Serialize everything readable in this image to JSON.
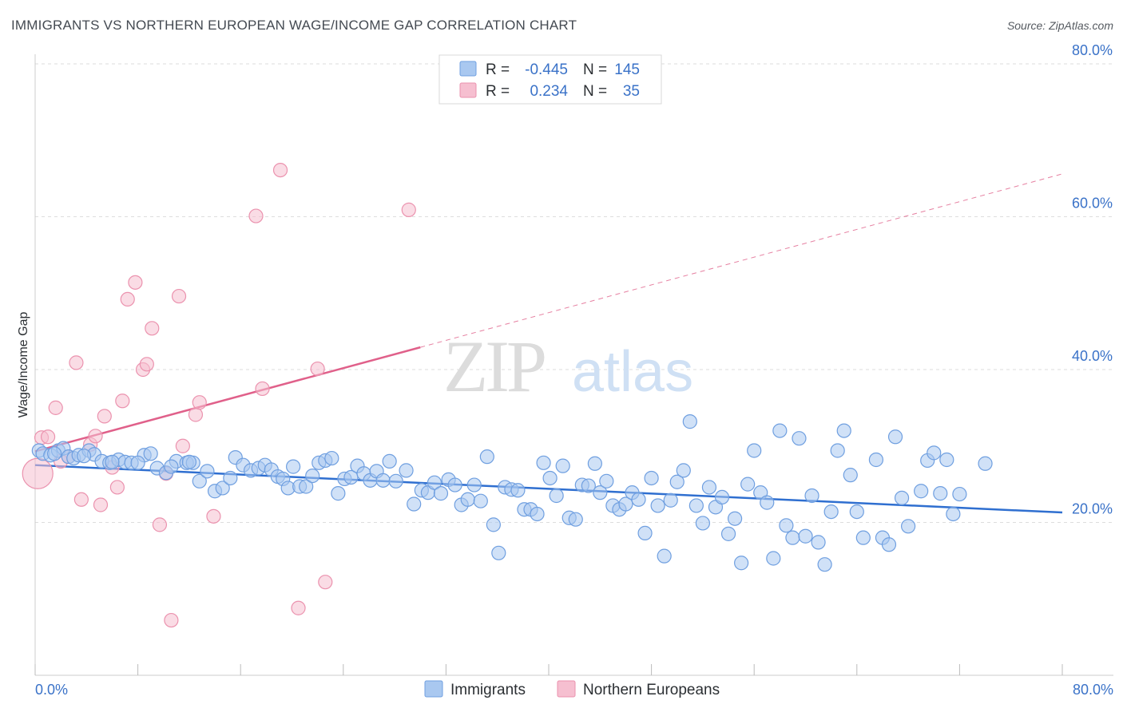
{
  "header": {
    "title": "IMMIGRANTS VS NORTHERN EUROPEAN WAGE/INCOME GAP CORRELATION CHART",
    "source": "Source: ZipAtlas.com"
  },
  "watermark": {
    "zip": "ZIP",
    "atlas": "atlas"
  },
  "legend_box": {
    "rows": [
      {
        "r_label": "R =",
        "r_value": "-0.445",
        "n_label": "N =",
        "n_value": "145"
      },
      {
        "r_label": "R =",
        "r_value": "0.234",
        "n_label": "N =",
        "n_value": "35"
      }
    ]
  },
  "bottom_legend": [
    "Immigrants",
    "Northern Europeans"
  ],
  "colors": {
    "blue_fill": "#a9c8f0",
    "blue_stroke": "#6f9fe0",
    "blue_line": "#2f6fd0",
    "pink_fill": "#f6bfd0",
    "pink_stroke": "#eb92ae",
    "pink_line": "#e0608a",
    "tick_blue": "#3a72c8",
    "grid": "#dddddd"
  },
  "chart_data": {
    "type": "scatter",
    "title": "IMMIGRANTS VS NORTHERN EUROPEAN WAGE/INCOME GAP CORRELATION CHART",
    "xlabel": "",
    "ylabel": "Wage/Income Gap",
    "xlim": [
      0,
      80
    ],
    "ylim": [
      0,
      80
    ],
    "x_tick_labels": [
      "0.0%",
      "80.0%"
    ],
    "y_tick_labels": [
      "20.0%",
      "40.0%",
      "60.0%",
      "80.0%"
    ],
    "y_ticks": [
      20,
      40,
      60,
      80
    ],
    "grid": true,
    "legend_position": "top-center",
    "series": [
      {
        "name": "Immigrants",
        "r": -0.445,
        "n": 145,
        "trend": {
          "x": [
            0,
            80
          ],
          "y": [
            27.5,
            21.3
          ],
          "dashed_from": null
        },
        "points": [
          [
            0.3,
            29.4
          ],
          [
            0.6,
            29.0
          ],
          [
            1.2,
            28.8
          ],
          [
            1.8,
            29.4
          ],
          [
            2.2,
            29.7
          ],
          [
            2.6,
            28.6
          ],
          [
            3.0,
            28.4
          ],
          [
            3.4,
            28.8
          ],
          [
            4.2,
            29.4
          ],
          [
            4.6,
            28.9
          ],
          [
            5.2,
            28.0
          ],
          [
            5.8,
            27.8
          ],
          [
            6.5,
            28.2
          ],
          [
            7.0,
            27.9
          ],
          [
            7.5,
            27.8
          ],
          [
            8.5,
            28.8
          ],
          [
            9.0,
            29.0
          ],
          [
            9.5,
            27.1
          ],
          [
            10.2,
            26.5
          ],
          [
            11.0,
            28.0
          ],
          [
            11.8,
            27.8
          ],
          [
            12.3,
            27.8
          ],
          [
            12.8,
            25.4
          ],
          [
            13.4,
            26.7
          ],
          [
            14.0,
            24.1
          ],
          [
            14.6,
            24.5
          ],
          [
            15.2,
            25.8
          ],
          [
            15.6,
            28.5
          ],
          [
            16.2,
            27.5
          ],
          [
            16.8,
            26.8
          ],
          [
            17.4,
            27.1
          ],
          [
            17.9,
            27.5
          ],
          [
            18.4,
            26.9
          ],
          [
            18.9,
            26.0
          ],
          [
            19.3,
            25.7
          ],
          [
            19.7,
            24.5
          ],
          [
            20.1,
            27.3
          ],
          [
            20.6,
            24.7
          ],
          [
            21.1,
            24.7
          ],
          [
            21.6,
            26.1
          ],
          [
            22.1,
            27.8
          ],
          [
            22.6,
            28.1
          ],
          [
            23.1,
            28.4
          ],
          [
            23.6,
            23.8
          ],
          [
            24.1,
            25.7
          ],
          [
            24.6,
            25.9
          ],
          [
            25.1,
            27.4
          ],
          [
            25.6,
            26.4
          ],
          [
            26.1,
            25.5
          ],
          [
            26.6,
            26.7
          ],
          [
            27.1,
            25.5
          ],
          [
            27.6,
            28.0
          ],
          [
            28.1,
            25.4
          ],
          [
            28.9,
            26.8
          ],
          [
            29.5,
            22.4
          ],
          [
            30.1,
            24.2
          ],
          [
            30.6,
            23.9
          ],
          [
            31.1,
            25.2
          ],
          [
            31.6,
            23.8
          ],
          [
            32.2,
            25.6
          ],
          [
            32.7,
            24.9
          ],
          [
            33.2,
            22.3
          ],
          [
            33.7,
            23.0
          ],
          [
            34.2,
            24.9
          ],
          [
            34.7,
            22.8
          ],
          [
            35.2,
            28.6
          ],
          [
            35.7,
            19.7
          ],
          [
            36.1,
            16.0
          ],
          [
            36.6,
            24.6
          ],
          [
            37.1,
            24.3
          ],
          [
            37.6,
            24.2
          ],
          [
            38.1,
            21.7
          ],
          [
            38.6,
            21.7
          ],
          [
            39.1,
            21.1
          ],
          [
            39.6,
            27.8
          ],
          [
            40.1,
            25.8
          ],
          [
            40.6,
            23.5
          ],
          [
            41.1,
            27.4
          ],
          [
            41.6,
            20.6
          ],
          [
            42.1,
            20.4
          ],
          [
            42.6,
            24.9
          ],
          [
            43.1,
            24.8
          ],
          [
            43.6,
            27.7
          ],
          [
            44.0,
            23.9
          ],
          [
            44.5,
            25.4
          ],
          [
            45.0,
            22.2
          ],
          [
            45.5,
            21.7
          ],
          [
            46.0,
            22.4
          ],
          [
            46.5,
            23.9
          ],
          [
            47.0,
            23.0
          ],
          [
            47.5,
            18.6
          ],
          [
            48.0,
            25.8
          ],
          [
            48.5,
            22.2
          ],
          [
            49.0,
            15.6
          ],
          [
            49.5,
            22.9
          ],
          [
            50.0,
            25.3
          ],
          [
            50.5,
            26.8
          ],
          [
            51.0,
            33.2
          ],
          [
            51.5,
            22.2
          ],
          [
            52.0,
            19.9
          ],
          [
            52.5,
            24.6
          ],
          [
            53.0,
            22.0
          ],
          [
            53.5,
            23.3
          ],
          [
            54.0,
            18.5
          ],
          [
            54.5,
            20.5
          ],
          [
            55.0,
            14.7
          ],
          [
            55.5,
            25.0
          ],
          [
            56.0,
            29.4
          ],
          [
            56.5,
            23.9
          ],
          [
            57.0,
            22.6
          ],
          [
            57.5,
            15.3
          ],
          [
            58.0,
            32.0
          ],
          [
            58.5,
            19.6
          ],
          [
            59.0,
            18.0
          ],
          [
            59.5,
            31.0
          ],
          [
            60.0,
            18.2
          ],
          [
            60.5,
            23.5
          ],
          [
            61.0,
            17.4
          ],
          [
            61.5,
            14.5
          ],
          [
            62.0,
            21.4
          ],
          [
            62.5,
            29.4
          ],
          [
            63.0,
            32.0
          ],
          [
            63.5,
            26.2
          ],
          [
            64.0,
            21.4
          ],
          [
            64.5,
            18.0
          ],
          [
            65.5,
            28.2
          ],
          [
            66.0,
            18.0
          ],
          [
            66.5,
            17.1
          ],
          [
            67.0,
            31.2
          ],
          [
            67.5,
            23.2
          ],
          [
            68.0,
            19.5
          ],
          [
            69.0,
            24.1
          ],
          [
            69.5,
            28.1
          ],
          [
            70.0,
            29.1
          ],
          [
            70.5,
            23.8
          ],
          [
            71.0,
            28.2
          ],
          [
            71.5,
            21.1
          ],
          [
            72.0,
            23.7
          ],
          [
            74.0,
            27.7
          ],
          [
            1.5,
            29.0
          ],
          [
            3.8,
            28.7
          ],
          [
            6.0,
            27.9
          ],
          [
            8.0,
            27.8
          ],
          [
            10.6,
            27.3
          ],
          [
            12.0,
            27.9
          ]
        ]
      },
      {
        "name": "Northern Europeans",
        "r": 0.234,
        "n": 35,
        "trend": {
          "x": [
            0,
            80
          ],
          "y": [
            29.3,
            65.6
          ],
          "dashed_from": 30
        },
        "points": [
          [
            0.2,
            26.4
          ],
          [
            0.5,
            31.1
          ],
          [
            1.0,
            31.2
          ],
          [
            1.6,
            35.0
          ],
          [
            2.0,
            28.0
          ],
          [
            2.6,
            28.6
          ],
          [
            3.2,
            40.9
          ],
          [
            3.6,
            23.0
          ],
          [
            4.3,
            30.2
          ],
          [
            4.7,
            31.3
          ],
          [
            5.1,
            22.3
          ],
          [
            5.4,
            33.9
          ],
          [
            6.0,
            27.2
          ],
          [
            6.4,
            24.6
          ],
          [
            6.8,
            35.9
          ],
          [
            7.2,
            49.2
          ],
          [
            7.8,
            51.4
          ],
          [
            8.4,
            40.0
          ],
          [
            8.7,
            40.7
          ],
          [
            9.1,
            45.4
          ],
          [
            9.7,
            19.7
          ],
          [
            10.2,
            26.4
          ],
          [
            10.6,
            7.2
          ],
          [
            11.2,
            49.6
          ],
          [
            11.5,
            30.0
          ],
          [
            12.5,
            34.1
          ],
          [
            12.8,
            35.7
          ],
          [
            13.9,
            20.8
          ],
          [
            17.2,
            60.1
          ],
          [
            17.7,
            37.5
          ],
          [
            19.1,
            66.1
          ],
          [
            20.5,
            8.8
          ],
          [
            22.0,
            40.1
          ],
          [
            22.6,
            12.2
          ],
          [
            29.1,
            60.9
          ]
        ]
      }
    ]
  }
}
